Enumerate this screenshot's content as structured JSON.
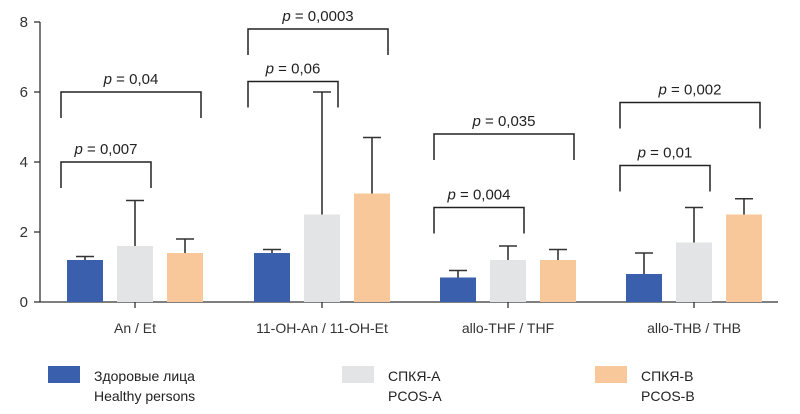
{
  "chart_data": {
    "type": "bar",
    "categories": [
      "An / Et",
      "11-OH-An / 11-OH-Et",
      "allo-THF / THF",
      "allo-THB / THB"
    ],
    "series": [
      {
        "name": "Здоровые лица / Healthy persons",
        "legend_ru": "Здоровые лица",
        "legend_en": "Healthy persons",
        "color": "#3a5fad",
        "values": [
          1.2,
          1.4,
          0.7,
          0.8
        ],
        "error": [
          1.3,
          1.5,
          0.9,
          1.4
        ]
      },
      {
        "name": "СПКЯ-А / PCOS-A",
        "legend_ru": "СПКЯ-А",
        "legend_en": "PCOS-A",
        "color": "#e3e4e6",
        "values": [
          1.6,
          2.5,
          1.2,
          1.7
        ],
        "error": [
          2.9,
          6.0,
          1.6,
          2.7
        ]
      },
      {
        "name": "СПКЯ-В / PCOS-B",
        "legend_ru": "СПКЯ-В",
        "legend_en": "PCOS-B",
        "color": "#f9c89a",
        "values": [
          1.4,
          3.1,
          1.2,
          2.5
        ],
        "error": [
          1.8,
          4.7,
          1.5,
          2.95
        ]
      }
    ],
    "ylim": [
      0,
      8
    ],
    "yticks": [
      "0",
      "2",
      "4",
      "6",
      "8"
    ],
    "p_prefix": "p",
    "significance": [
      {
        "category": 0,
        "from": 0,
        "to": 1,
        "level": 4.0,
        "label": " = 0,007"
      },
      {
        "category": 0,
        "from": 0,
        "to": 2,
        "level": 6.0,
        "label": " = 0,04"
      },
      {
        "category": 1,
        "from": 0,
        "to": 1,
        "level": 6.3,
        "label": " = 0,06"
      },
      {
        "category": 1,
        "from": 0,
        "to": 2,
        "level": 7.8,
        "label": " = 0,0003"
      },
      {
        "category": 2,
        "from": 0,
        "to": 1,
        "level": 2.7,
        "label": " = 0,004"
      },
      {
        "category": 2,
        "from": 0,
        "to": 2,
        "level": 4.8,
        "label": " = 0,035"
      },
      {
        "category": 3,
        "from": 0,
        "to": 1,
        "level": 3.9,
        "label": " = 0,01"
      },
      {
        "category": 3,
        "from": 0,
        "to": 2,
        "level": 5.7,
        "label": " = 0,002"
      }
    ]
  }
}
